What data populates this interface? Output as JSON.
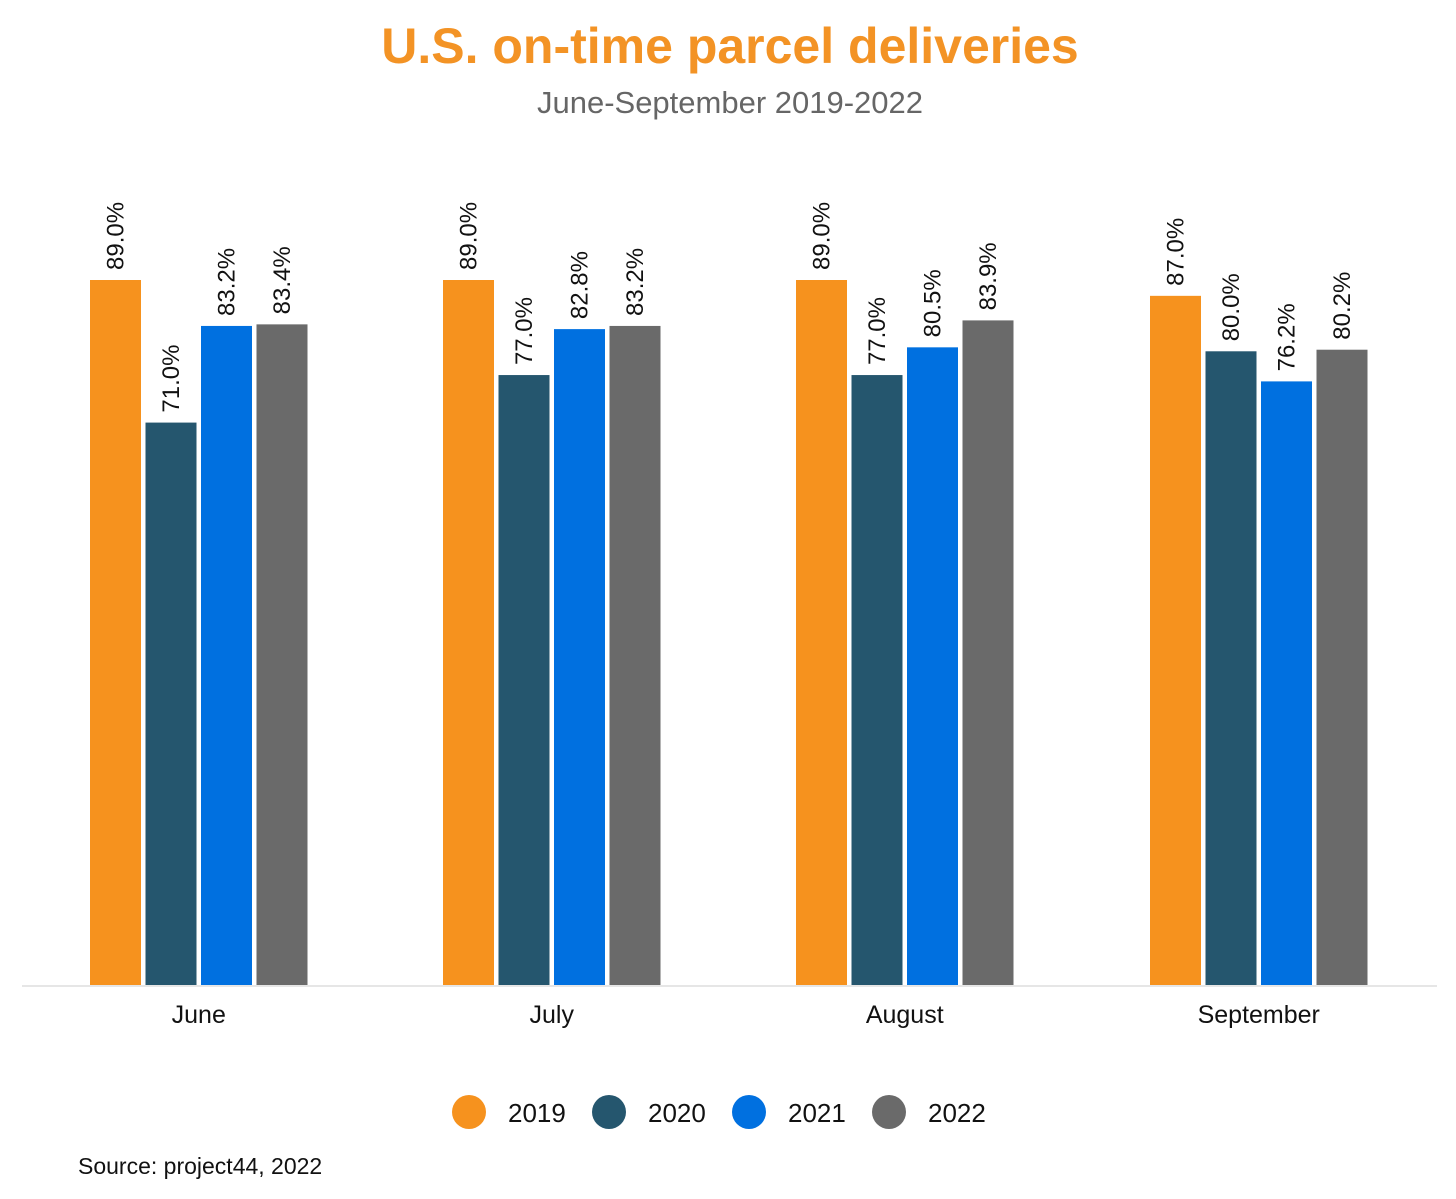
{
  "chart_data": {
    "type": "bar",
    "title": "U.S. on-time parcel deliveries",
    "subtitle": "June-September 2019-2022",
    "xlabel": "",
    "ylabel": "",
    "ylim": [
      0,
      89
    ],
    "grid": false,
    "legend_position": "bottom",
    "categories": [
      "June",
      "July",
      "August",
      "September"
    ],
    "series": [
      {
        "name": "2019",
        "color": "#F6921E",
        "values": [
          89.0,
          89.0,
          89.0,
          87.0
        ]
      },
      {
        "name": "2020",
        "color": "#25566E",
        "values": [
          71.0,
          77.0,
          77.0,
          80.0
        ]
      },
      {
        "name": "2021",
        "color": "#0070E0",
        "values": [
          83.2,
          82.8,
          80.5,
          76.2
        ]
      },
      {
        "name": "2022",
        "color": "#6A6A6A",
        "values": [
          83.4,
          83.2,
          83.9,
          80.2
        ]
      }
    ],
    "source": "Source: project44, 2022"
  },
  "colors": {
    "title": "#F39325",
    "axis": "#E6E6E6"
  }
}
